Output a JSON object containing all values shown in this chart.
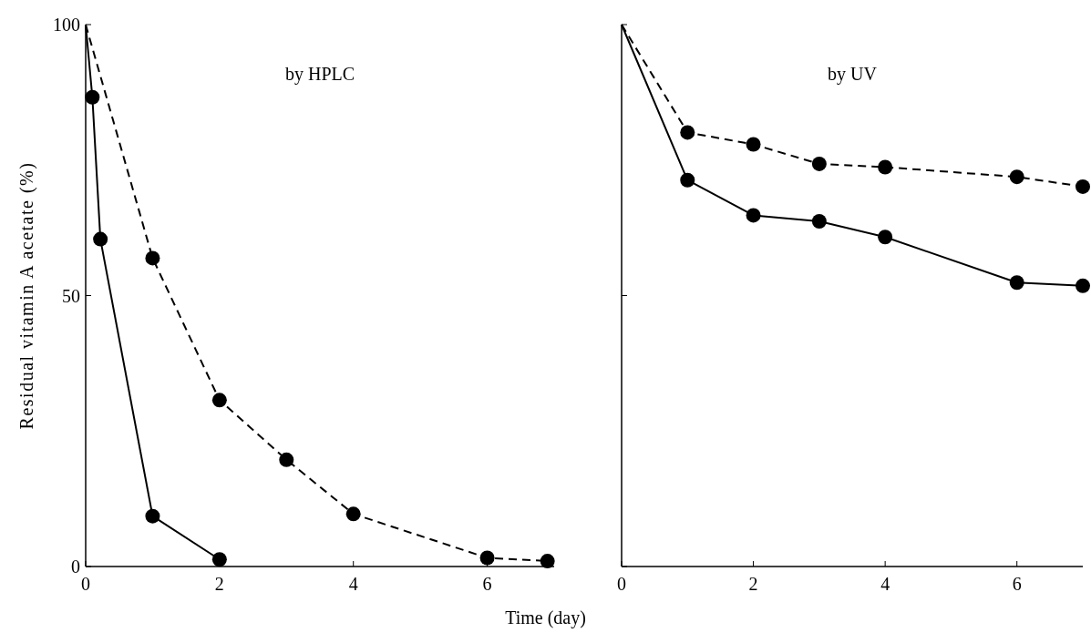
{
  "chart_data": [
    {
      "type": "line",
      "title": "by HPLC",
      "ylabel": "Residual vitamin A acetate (%)",
      "xlabel": "Time (day)",
      "xlim": [
        0,
        7
      ],
      "xticks": [
        0,
        2,
        4,
        6
      ],
      "ylim": [
        0,
        100
      ],
      "yticks": [
        0,
        50,
        100
      ],
      "marker": "circle",
      "series": [
        {
          "color": "#000000",
          "line_style": "solid",
          "x": [
            0,
            0.1,
            0.22,
            1,
            2
          ],
          "values": [
            100,
            86.6,
            60.4,
            9.3,
            1.3
          ]
        },
        {
          "color": "#000000",
          "line_style": "dashed",
          "x": [
            0,
            1,
            2,
            3,
            4,
            6,
            6.9
          ],
          "values": [
            100,
            56.9,
            30.7,
            19.7,
            9.7,
            1.6,
            1.0
          ]
        }
      ]
    },
    {
      "type": "line",
      "title": "by UV",
      "xlim": [
        0,
        7
      ],
      "xticks": [
        0,
        2,
        4,
        6
      ],
      "ylim": [
        0,
        100
      ],
      "yticks": [
        {
          "value": 0,
          "label": null
        },
        {
          "value": 50,
          "label": null
        },
        {
          "value": 100,
          "label": null
        }
      ],
      "tick_labels": "x",
      "marker": "circle",
      "series": [
        {
          "color": "#000000",
          "line_style": "solid",
          "x": [
            0,
            1,
            2,
            3,
            4,
            6,
            7
          ],
          "values": [
            100,
            71.3,
            64.8,
            63.7,
            60.8,
            52.4,
            51.8
          ]
        },
        {
          "color": "#000000",
          "line_style": "dashed",
          "x": [
            0,
            1,
            2,
            3,
            4,
            6,
            7
          ],
          "values": [
            100,
            80.1,
            77.9,
            74.3,
            73.7,
            71.9,
            70.1
          ]
        }
      ]
    }
  ]
}
